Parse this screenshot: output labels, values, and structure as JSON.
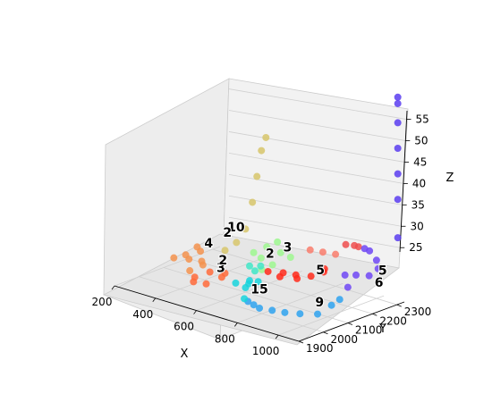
{
  "chart_data": {
    "type": "scatter",
    "projection": "3d",
    "title": "",
    "xlabel": "X",
    "ylabel": "Y",
    "zlabel": "Z",
    "xlim": [
      200,
      1100
    ],
    "ylim": [
      1900,
      2330
    ],
    "zlim": [
      24,
      57
    ],
    "xticks": [
      "200",
      "400",
      "600",
      "800",
      "1000"
    ],
    "yticks": [
      "1900",
      "2000",
      "2100",
      "2200",
      "2300"
    ],
    "zticks": [
      "25",
      "30",
      "35",
      "40",
      "45",
      "50",
      "55"
    ],
    "grid": true,
    "colormap": "rainbow",
    "legend": "none",
    "point_labels": [
      {
        "text": "10",
        "x": 410,
        "y": 2220,
        "z": 30
      },
      {
        "text": "2",
        "x": 380,
        "y": 2210,
        "z": 29
      },
      {
        "text": "3",
        "x": 650,
        "y": 2230,
        "z": 29
      },
      {
        "text": "2",
        "x": 600,
        "y": 2200,
        "z": 28
      },
      {
        "text": "4",
        "x": 360,
        "y": 2150,
        "z": 28
      },
      {
        "text": "5",
        "x": 1030,
        "y": 2300,
        "z": 28
      },
      {
        "text": "6",
        "x": 1060,
        "y": 2260,
        "z": 27
      },
      {
        "text": "5",
        "x": 810,
        "y": 2230,
        "z": 27
      },
      {
        "text": "15",
        "x": 740,
        "y": 2040,
        "z": 26
      },
      {
        "text": "9",
        "x": 950,
        "y": 2110,
        "z": 25
      },
      {
        "text": "3",
        "x": 480,
        "y": 2100,
        "z": 26
      },
      {
        "text": "2",
        "x": 430,
        "y": 2150,
        "z": 26
      }
    ],
    "series": [
      {
        "color": "#f3924e",
        "points": [
          [
            250,
            2100,
            26
          ],
          [
            300,
            2120,
            26
          ],
          [
            350,
            2130,
            26
          ],
          [
            320,
            2150,
            27
          ],
          [
            280,
            2170,
            27
          ],
          [
            260,
            2140,
            26
          ],
          [
            380,
            2110,
            26
          ],
          [
            340,
            2090,
            25
          ]
        ]
      },
      {
        "color": "#ff6a3a",
        "points": [
          [
            400,
            2060,
            25
          ],
          [
            450,
            2080,
            26
          ],
          [
            500,
            2100,
            26
          ],
          [
            480,
            2040,
            25
          ],
          [
            430,
            2030,
            25
          ],
          [
            520,
            2070,
            26
          ]
        ]
      },
      {
        "color": "#d7c66b",
        "points": [
          [
            380,
            2200,
            27
          ],
          [
            400,
            2230,
            28
          ],
          [
            420,
            2250,
            30
          ],
          [
            430,
            2270,
            34
          ],
          [
            440,
            2280,
            38
          ],
          [
            450,
            2290,
            42
          ],
          [
            460,
            2300,
            44
          ]
        ]
      },
      {
        "color": "#9ef78f",
        "points": [
          [
            520,
            2200,
            28
          ],
          [
            560,
            2220,
            29
          ],
          [
            600,
            2230,
            30
          ],
          [
            640,
            2210,
            29
          ],
          [
            580,
            2180,
            28
          ],
          [
            620,
            2150,
            27
          ],
          [
            660,
            2160,
            28
          ],
          [
            700,
            2200,
            29
          ]
        ]
      },
      {
        "color": "#ff2a1b",
        "points": [
          [
            650,
            2150,
            27
          ],
          [
            700,
            2170,
            27
          ],
          [
            750,
            2180,
            27
          ],
          [
            800,
            2200,
            27
          ],
          [
            850,
            2210,
            28
          ],
          [
            780,
            2160,
            27
          ],
          [
            720,
            2140,
            27
          ],
          [
            830,
            2230,
            28
          ]
        ]
      },
      {
        "color": "#f97c6c",
        "points": [
          [
            700,
            2280,
            29
          ],
          [
            750,
            2290,
            29
          ],
          [
            800,
            2300,
            29
          ]
        ]
      },
      {
        "color": "#ef4f4f",
        "points": [
          [
            850,
            2300,
            31
          ],
          [
            880,
            2310,
            31
          ],
          [
            900,
            2310,
            31
          ]
        ]
      },
      {
        "color": "#6f46f4",
        "points": [
          [
            930,
            2310,
            31
          ],
          [
            960,
            2305,
            31
          ],
          [
            1000,
            2300,
            30
          ],
          [
            1020,
            2290,
            29
          ],
          [
            1000,
            2270,
            28
          ],
          [
            960,
            2250,
            28
          ],
          [
            930,
            2230,
            28
          ],
          [
            980,
            2200,
            27
          ]
        ]
      },
      {
        "color": "#5b3df0",
        "points": [
          [
            1080,
            2320,
            34
          ],
          [
            1080,
            2320,
            40
          ],
          [
            1080,
            2320,
            44
          ],
          [
            1080,
            2320,
            48
          ],
          [
            1080,
            2320,
            52
          ],
          [
            1080,
            2320,
            55
          ],
          [
            1080,
            2320,
            56
          ]
        ]
      },
      {
        "color": "#2ea2ee",
        "points": [
          [
            1000,
            2150,
            26
          ],
          [
            1020,
            2100,
            26
          ],
          [
            1000,
            2060,
            25
          ],
          [
            950,
            2030,
            25
          ],
          [
            900,
            2010,
            25
          ],
          [
            850,
            2000,
            25
          ],
          [
            800,
            1990,
            25
          ],
          [
            760,
            2000,
            25
          ],
          [
            720,
            2010,
            25
          ]
        ]
      },
      {
        "color": "#18d4dc",
        "points": [
          [
            640,
            2080,
            26
          ],
          [
            660,
            2050,
            26
          ],
          [
            690,
            2020,
            25
          ],
          [
            620,
            2100,
            26
          ],
          [
            600,
            2060,
            26
          ],
          [
            650,
            2110,
            26
          ]
        ]
      },
      {
        "color": "#41e6c7",
        "points": [
          [
            560,
            2150,
            27
          ],
          [
            590,
            2170,
            27
          ],
          [
            610,
            2130,
            27
          ]
        ]
      }
    ]
  }
}
